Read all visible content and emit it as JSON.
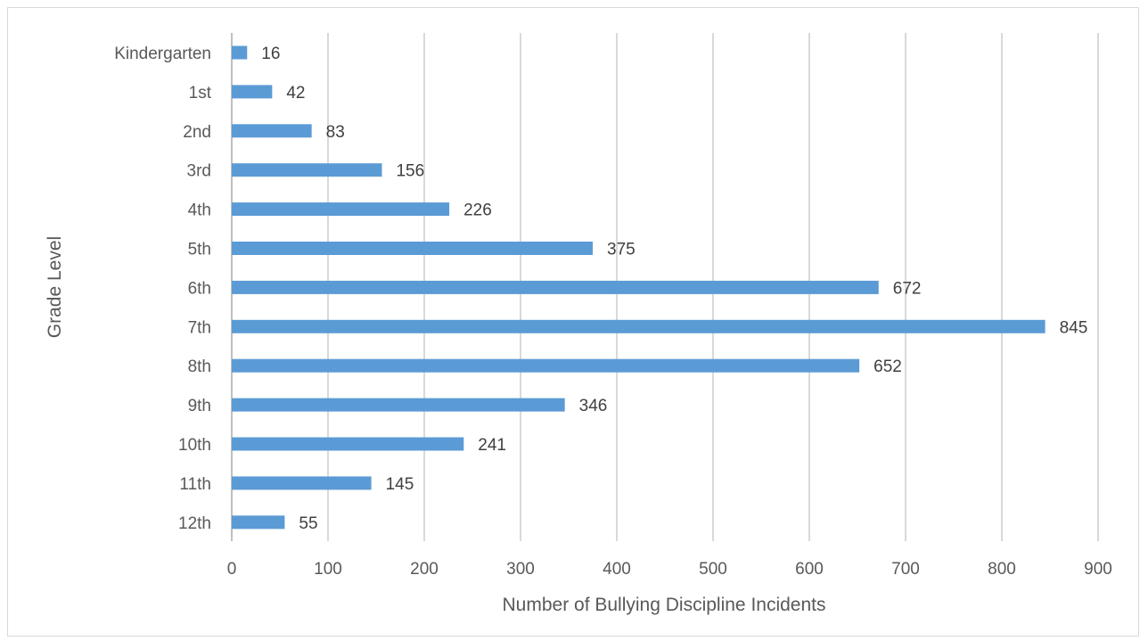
{
  "chart_data": {
    "type": "bar",
    "orientation": "horizontal",
    "categories": [
      "Kindergarten",
      "1st",
      "2nd",
      "3rd",
      "4th",
      "5th",
      "6th",
      "7th",
      "8th",
      "9th",
      "10th",
      "11th",
      "12th"
    ],
    "values": [
      16,
      42,
      83,
      156,
      226,
      375,
      672,
      845,
      652,
      346,
      241,
      145,
      55
    ],
    "xlabel": "Number of Bullying Discipline Incidents",
    "ylabel": "Grade Level",
    "xlim": [
      0,
      900
    ],
    "xticks": [
      0,
      100,
      200,
      300,
      400,
      500,
      600,
      700,
      800,
      900
    ],
    "grid": "vertical",
    "data_labels": true,
    "bar_color": "#5b9bd5"
  }
}
